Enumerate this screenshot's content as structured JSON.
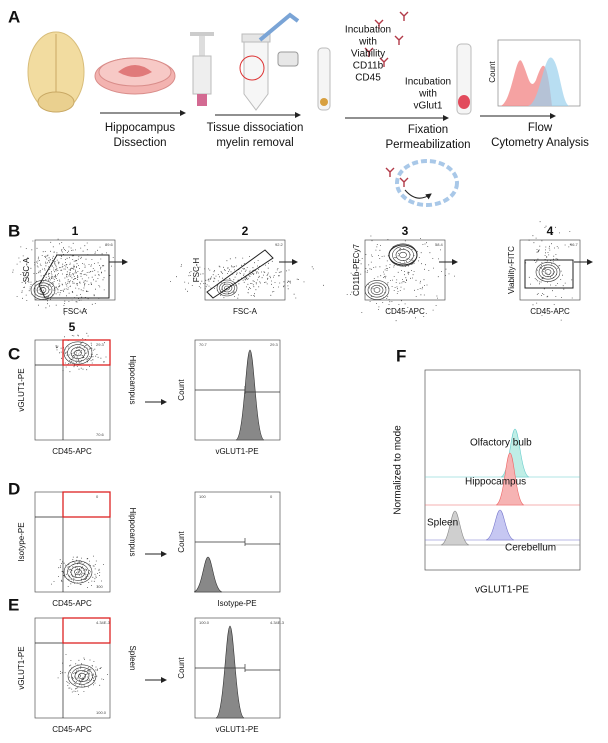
{
  "panel_labels": [
    "A",
    "B",
    "C",
    "D",
    "E",
    "F"
  ],
  "panel_a": {
    "steps": [
      [
        "Hippocampus",
        "Dissection"
      ],
      [
        "Tissue dissociation",
        "myelin removal"
      ],
      [
        "Incubation",
        "with",
        "Viability",
        "CD11b",
        "CD45"
      ],
      [
        "Incubation",
        "with",
        "vGlut1"
      ],
      [
        "Fixation",
        "Permeabilization"
      ],
      [
        "Flow",
        "Cytometry Analysis"
      ]
    ],
    "histogram_y_label": "Count"
  },
  "panel_b": {
    "plots": [
      {
        "number": "1",
        "x_label": "FSC-A",
        "y_label": "SSC-A",
        "gate": "89.6"
      },
      {
        "number": "2",
        "x_label": "FSC-A",
        "y_label": "FSC-H",
        "gate": "92.2"
      },
      {
        "number": "3",
        "x_label": "CD45-APC",
        "y_label": "CD11b-PECy7",
        "gate": "58.4"
      },
      {
        "number": "4",
        "x_label": "CD45-APC",
        "y_label": "Viability-FITC",
        "gate": "96.7"
      }
    ]
  },
  "panel_c": {
    "number": "5",
    "tissue": "Hippocampus",
    "dot_plot": {
      "x_label": "CD45-APC",
      "y_label": "vGLUT1-PE",
      "gate_values": [
        "29.3",
        "70.6"
      ]
    },
    "histogram": {
      "x_label": "vGLUT1-PE",
      "y_label": "Count",
      "gate_values": [
        "70.7",
        "29.3"
      ]
    }
  },
  "panel_d": {
    "tissue": "Hippocampus",
    "dot_plot": {
      "x_label": "CD45-APC",
      "y_label": "Isotype-PE",
      "gate_values": [
        "0",
        "100"
      ]
    },
    "histogram": {
      "x_label": "Isotype-PE",
      "y_label": "Count",
      "gate_values": [
        "100",
        "0"
      ]
    }
  },
  "panel_e": {
    "tissue": "Spleen",
    "dot_plot": {
      "x_label": "CD45-APC",
      "y_label": "vGLUT1-PE",
      "gate_values": [
        "4.34E-3",
        "100.0"
      ]
    },
    "histogram": {
      "x_label": "vGLUT1-PE",
      "y_label": "Count",
      "gate_values": [
        "100.0",
        "4.34E-3"
      ]
    }
  },
  "panel_f": {
    "y_label": "Normalized to mode",
    "x_label": "vGLUT1-PE",
    "tracks": [
      "Olfactory bulb",
      "Hippocampus",
      "Spleen",
      "Cerebellum"
    ]
  }
}
